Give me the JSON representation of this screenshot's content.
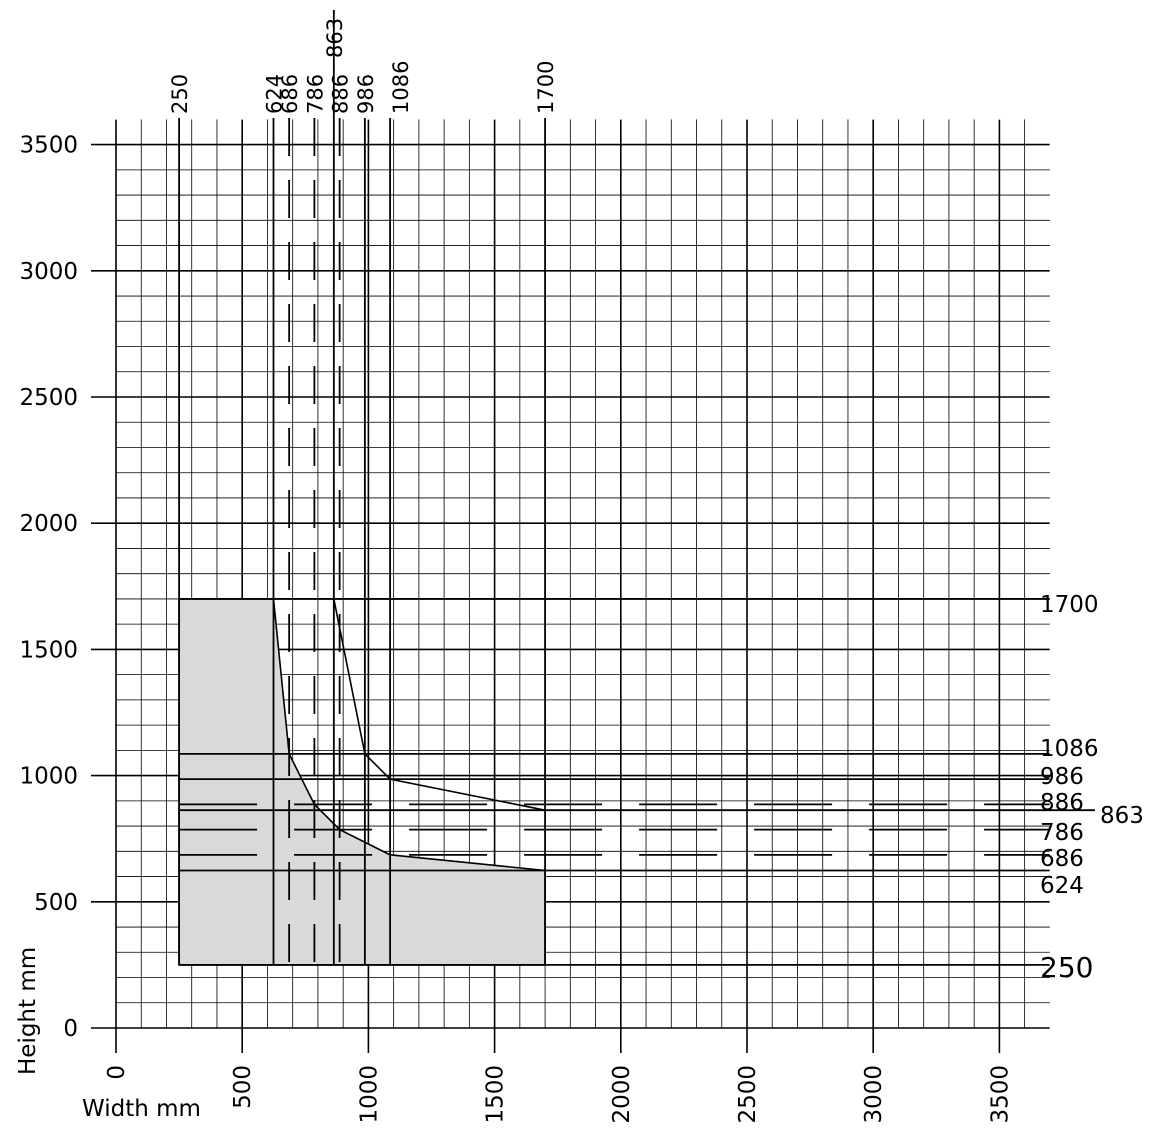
{
  "chart_data": {
    "type": "area",
    "title": "",
    "xlabel": "Width mm",
    "ylabel": "Height mm",
    "xlim": [
      0,
      3600
    ],
    "ylim": [
      0,
      3500
    ],
    "x_ticks": [
      0,
      500,
      1000,
      1500,
      2000,
      2500,
      3000,
      3500
    ],
    "y_ticks": [
      0,
      500,
      1000,
      1500,
      2000,
      2500,
      3000,
      3500
    ],
    "grid": {
      "minor_step": 100,
      "major_step": 500
    },
    "colors": {
      "region_fill": "#d9d9d9",
      "line": "#000000",
      "grid": "#000000"
    },
    "top_markers": [
      "250",
      "624",
      "686",
      "786",
      "863",
      "886",
      "986",
      "1086",
      "1700"
    ],
    "right_markers": [
      "1700",
      "1086",
      "986",
      "886",
      "863",
      "786",
      "686",
      "624",
      "250"
    ],
    "reference_lines": {
      "vertical_solid": [
        250,
        624,
        863,
        986,
        1086,
        1700
      ],
      "vertical_dashed": [
        686,
        786,
        886
      ],
      "horizontal_solid": [
        250,
        624,
        863,
        986,
        1086,
        1700
      ],
      "horizontal_dashed": [
        686,
        786,
        886
      ]
    },
    "shaded_region": {
      "name": "",
      "points": [
        [
          250,
          250
        ],
        [
          250,
          1700
        ],
        [
          624,
          1700
        ],
        [
          686,
          1086
        ],
        [
          786,
          886
        ],
        [
          886,
          786
        ],
        [
          1086,
          686
        ],
        [
          1700,
          624
        ],
        [
          1700,
          250
        ]
      ]
    },
    "outer_boundary": {
      "points": [
        [
          863,
          1700
        ],
        [
          986,
          1086
        ],
        [
          1086,
          986
        ],
        [
          1700,
          863
        ]
      ]
    }
  }
}
